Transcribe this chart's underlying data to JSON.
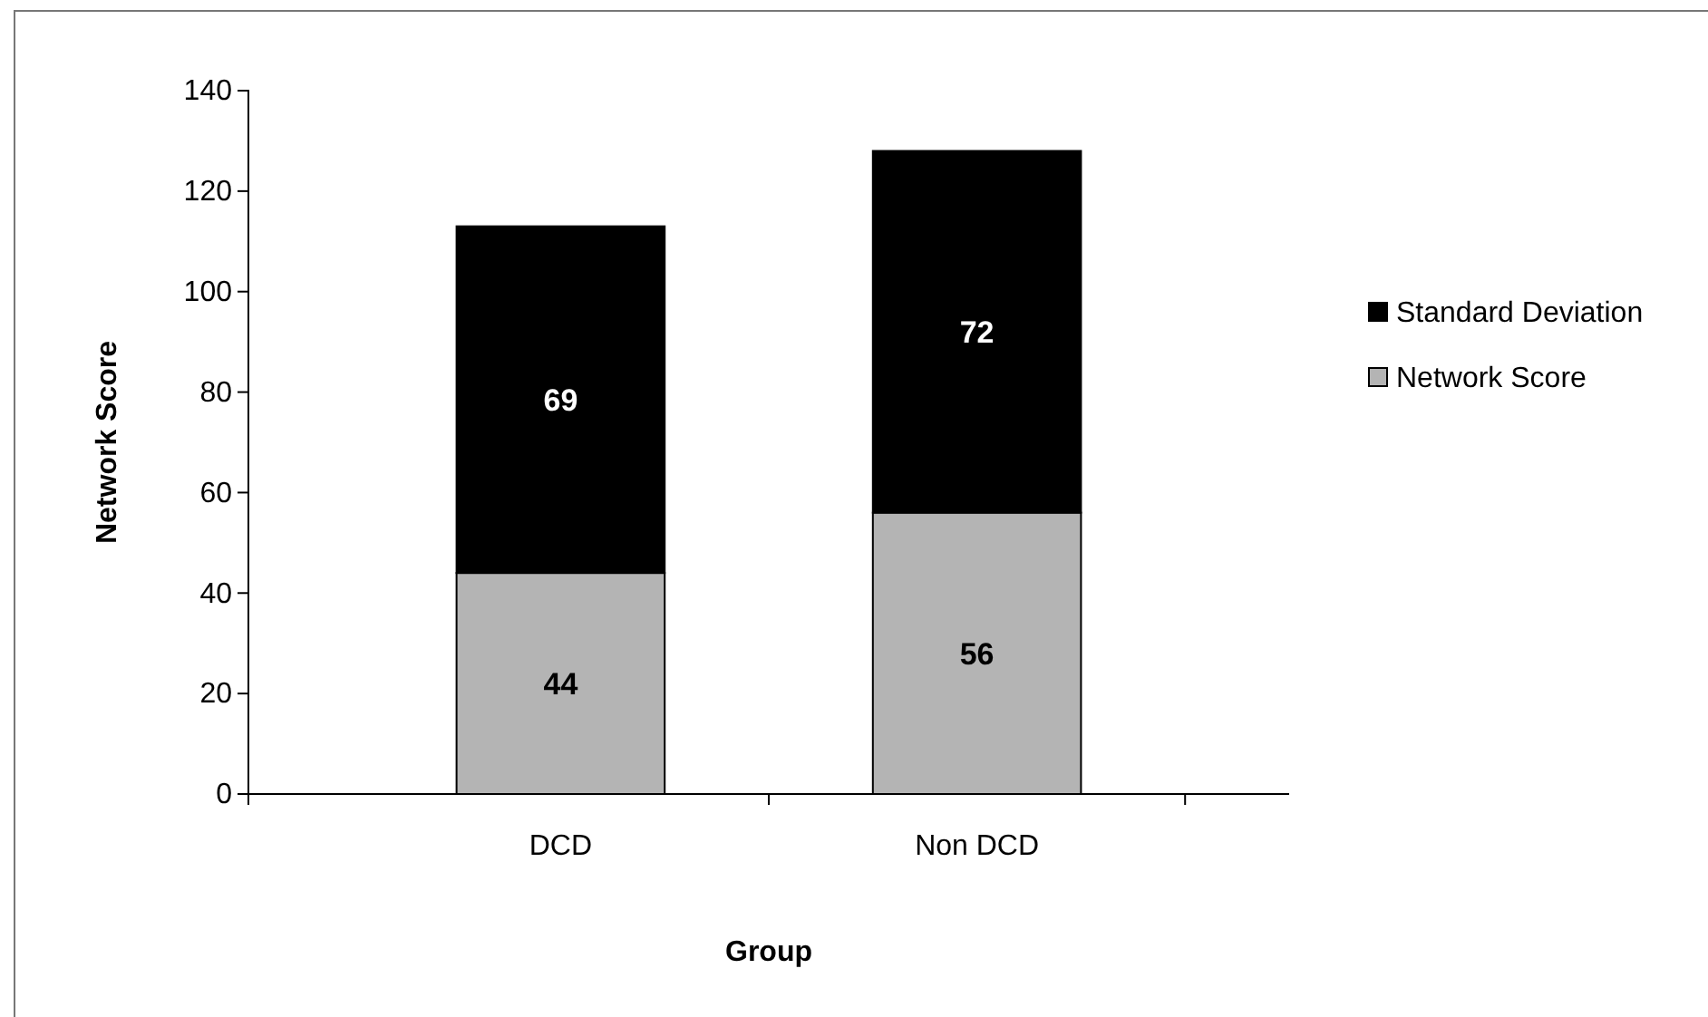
{
  "chart_data": {
    "type": "bar",
    "stacked": true,
    "xlabel": "Group",
    "ylabel": "Network Score",
    "categories": [
      "DCD",
      "Non DCD"
    ],
    "series": [
      {
        "name": "Network Score",
        "color": "#b4b4b4",
        "values": [
          44,
          56
        ]
      },
      {
        "name": "Standard Deviation",
        "color": "#000000",
        "values": [
          69,
          72
        ]
      }
    ],
    "ylim": [
      0,
      140
    ],
    "yticks": [
      0,
      20,
      40,
      60,
      80,
      100,
      120,
      140
    ],
    "data_labels": true,
    "legend": "right"
  }
}
